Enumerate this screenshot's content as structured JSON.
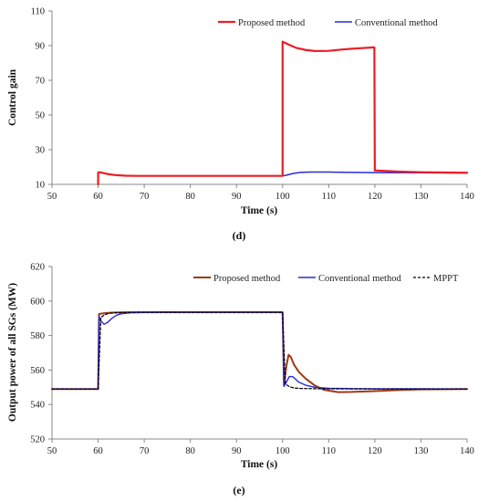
{
  "colors": {
    "proposed_d": "#ee1c25",
    "proposed_e": "#9b3a14",
    "conventional": "#2a2ad6",
    "mppt": "#000000",
    "axis": "#888888"
  },
  "chart_data": [
    {
      "type": "line",
      "caption": "(d)",
      "xlabel": "Time (s)",
      "ylabel": "Control gain",
      "xlim": [
        50,
        140
      ],
      "ylim": [
        10,
        110
      ],
      "xticks": [
        50,
        60,
        70,
        80,
        90,
        100,
        110,
        120,
        130,
        140
      ],
      "yticks": [
        10,
        30,
        50,
        70,
        90,
        110
      ],
      "xtick_labels": [
        "50",
        "60",
        "70",
        "80",
        "90",
        "100",
        "110",
        "120",
        "130",
        "140"
      ],
      "ytick_labels": [
        "10",
        "30",
        "50",
        "70",
        "90",
        "110"
      ],
      "grid": false,
      "legend_position": "top-right",
      "series": [
        {
          "name": "Proposed method",
          "color": "#ee1c25",
          "dash": false,
          "x": [
            60,
            60,
            60.3,
            61,
            62,
            63,
            64,
            66,
            68,
            70,
            80,
            90,
            100,
            100,
            101,
            102,
            103,
            105,
            107,
            110,
            113,
            116,
            119.9,
            120,
            120.5,
            125,
            130,
            140
          ],
          "y": [
            10,
            16.8,
            17.0,
            16.6,
            16.0,
            15.6,
            15.3,
            15.0,
            14.9,
            14.9,
            14.9,
            14.9,
            14.9,
            92.3,
            91.0,
            89.8,
            88.7,
            87.5,
            86.9,
            87.0,
            87.8,
            88.4,
            89.0,
            18.0,
            18.0,
            17.4,
            17.0,
            16.7
          ]
        },
        {
          "name": "Conventional method",
          "color": "#2a2ad6",
          "dash": false,
          "x": [
            60,
            60,
            60.3,
            61,
            62,
            63,
            64,
            66,
            68,
            70,
            80,
            90,
            100,
            101,
            102,
            103,
            104,
            106,
            110,
            115,
            120,
            130,
            140
          ],
          "y": [
            10,
            16.8,
            17.0,
            16.6,
            16.0,
            15.6,
            15.3,
            15.0,
            14.9,
            14.9,
            14.9,
            14.9,
            14.9,
            15.4,
            16.1,
            16.6,
            16.9,
            17.1,
            17.1,
            16.9,
            16.8,
            16.7,
            16.6
          ]
        }
      ]
    },
    {
      "type": "line",
      "caption": "(e)",
      "xlabel": "Time (s)",
      "ylabel": "Output power of all SGs (MW)",
      "xlim": [
        50,
        140
      ],
      "ylim": [
        520,
        620
      ],
      "xticks": [
        50,
        60,
        70,
        80,
        90,
        100,
        110,
        120,
        130,
        140
      ],
      "yticks": [
        520,
        540,
        560,
        580,
        600,
        620
      ],
      "xtick_labels": [
        "50",
        "60",
        "70",
        "80",
        "90",
        "100",
        "110",
        "120",
        "130",
        "140"
      ],
      "ytick_labels": [
        "520",
        "540",
        "560",
        "580",
        "600",
        "620"
      ],
      "grid": false,
      "legend_position": "top-right",
      "series": [
        {
          "name": "Proposed method",
          "color": "#9b3a14",
          "dash": false,
          "x": [
            50,
            60,
            60.2,
            61,
            62,
            63,
            65,
            68,
            72,
            80,
            90,
            100,
            100.3,
            100.8,
            101.3,
            101.8,
            102.5,
            103.5,
            105,
            107,
            109,
            112,
            115,
            120,
            125,
            130,
            140
          ],
          "y": [
            549,
            549,
            592.5,
            592.8,
            593.1,
            593.3,
            593.4,
            593.5,
            593.5,
            593.5,
            593.5,
            593.5,
            551,
            562,
            568.8,
            567.5,
            563,
            559,
            555,
            551,
            548.5,
            547.2,
            547.3,
            547.8,
            548.4,
            548.8,
            549
          ]
        },
        {
          "name": "Conventional method",
          "color": "#2a2ad6",
          "dash": false,
          "x": [
            50,
            60,
            60.2,
            60.6,
            61.3,
            62,
            63,
            64,
            65,
            67,
            70,
            75,
            80,
            90,
            100,
            100.3,
            100.8,
            101.5,
            102.3,
            103.5,
            105,
            107,
            110,
            115,
            120,
            130,
            140
          ],
          "y": [
            549,
            549,
            591,
            588.5,
            586.5,
            587.5,
            590,
            591.8,
            592.6,
            593.2,
            593.4,
            593.6,
            593.5,
            593.5,
            593.5,
            550.5,
            553,
            556.3,
            556,
            553,
            551.2,
            550,
            549.4,
            549.2,
            549.1,
            549.1,
            549
          ]
        },
        {
          "name": "MPPT",
          "color": "#000000",
          "dash": true,
          "x": [
            50,
            60,
            60.6,
            61.5,
            62.5,
            64,
            66,
            70,
            80,
            90,
            100,
            100.6,
            101.5,
            102.5,
            104,
            106,
            110,
            120,
            130,
            140
          ],
          "y": [
            549,
            549,
            590.5,
            592.2,
            592.9,
            593.2,
            593.4,
            593.5,
            593.5,
            593.5,
            593.5,
            552,
            550.3,
            549.6,
            549.3,
            549.2,
            549.1,
            549,
            549,
            549
          ]
        }
      ]
    }
  ]
}
